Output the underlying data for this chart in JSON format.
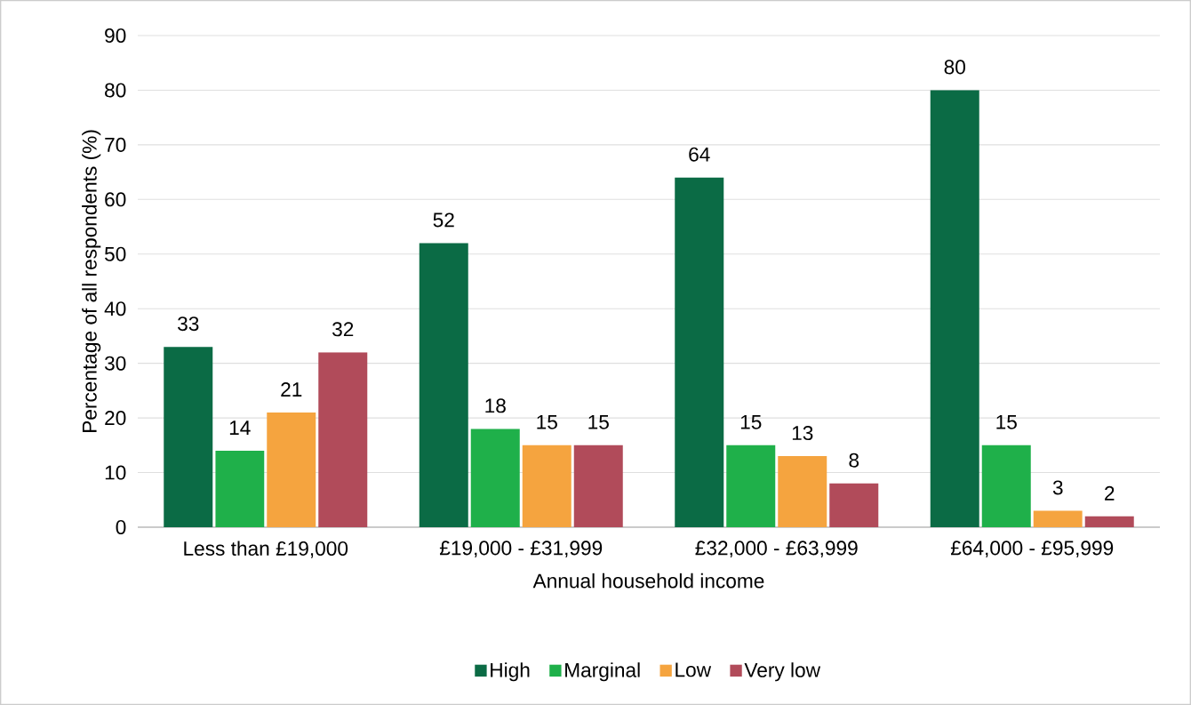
{
  "chart_data": {
    "type": "bar",
    "xlabel": "Annual household income",
    "ylabel": "Percentage of all respondents (%)",
    "categories": [
      "Less than £19,000",
      "£19,000 - £31,999",
      "£32,000 - £63,999",
      "£64,000 - £95,999"
    ],
    "series": [
      {
        "name": "High",
        "color": "#0b6b45",
        "values": [
          33,
          52,
          64,
          80
        ]
      },
      {
        "name": "Marginal",
        "color": "#1fb04a",
        "values": [
          14,
          18,
          15,
          15
        ]
      },
      {
        "name": "Low",
        "color": "#f5a43f",
        "values": [
          21,
          15,
          13,
          3
        ]
      },
      {
        "name": "Very low",
        "color": "#b14b5a",
        "values": [
          32,
          15,
          8,
          2
        ]
      }
    ],
    "ylim": [
      0,
      90
    ],
    "yticks": [
      0,
      10,
      20,
      30,
      40,
      50,
      60,
      70,
      80,
      90
    ],
    "grid": "y",
    "legend": "bottom",
    "data_labels": true
  }
}
